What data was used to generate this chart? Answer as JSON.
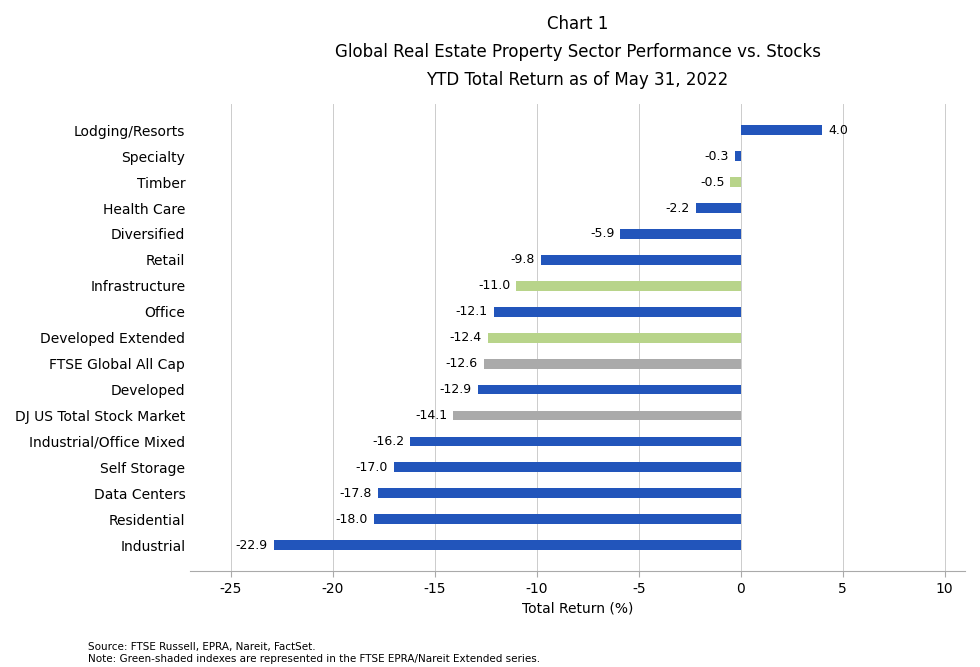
{
  "title_line1": "Chart 1",
  "title_line2": "Global Real Estate Property Sector Performance vs. Stocks",
  "title_line3": "YTD Total Return as of May 31, 2022",
  "xlabel": "Total Return (%)",
  "categories": [
    "Industrial",
    "Residential",
    "Data Centers",
    "Self Storage",
    "Industrial/Office Mixed",
    "DJ US Total Stock Market",
    "Developed",
    "FTSE Global All Cap",
    "Developed Extended",
    "Office",
    "Infrastructure",
    "Retail",
    "Diversified",
    "Health Care",
    "Timber",
    "Specialty",
    "Lodging/Resorts"
  ],
  "values": [
    -22.9,
    -18.0,
    -17.8,
    -17.0,
    -16.2,
    -14.1,
    -12.9,
    -12.6,
    -12.4,
    -12.1,
    -11.0,
    -9.8,
    -5.9,
    -2.2,
    -0.5,
    -0.3,
    4.0
  ],
  "colors": [
    "#2255bb",
    "#2255bb",
    "#2255bb",
    "#2255bb",
    "#2255bb",
    "#aaaaaa",
    "#2255bb",
    "#aaaaaa",
    "#b8d48a",
    "#2255bb",
    "#b8d48a",
    "#2255bb",
    "#2255bb",
    "#2255bb",
    "#b8d48a",
    "#2255bb",
    "#2255bb"
  ],
  "xlim": [
    -27,
    11
  ],
  "xticks": [
    -25,
    -20,
    -15,
    -10,
    -5,
    0,
    5,
    10
  ],
  "footnote_line1": "Source: FTSE Russell, EPRA, Nareit, FactSet.",
  "footnote_line2": "Note: Green-shaded indexes are represented in the FTSE EPRA/Nareit Extended series.",
  "bar_height": 0.38,
  "background_color": "#ffffff",
  "title_fontsize": 12,
  "axis_label_fontsize": 10,
  "tick_fontsize": 10,
  "value_label_fontsize": 9,
  "ytick_fontsize": 10,
  "footnote_fontsize": 7.5
}
